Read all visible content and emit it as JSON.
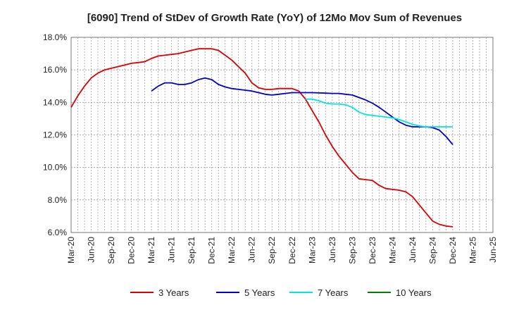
{
  "chart_data": {
    "type": "line",
    "title": "[6090]  Trend of StDev of Growth Rate (YoY) of 12Mo Mov Sum of Revenues",
    "xlabel": "",
    "ylabel": "",
    "ylim": [
      6.0,
      18.0
    ],
    "y_ticks": [
      "6.0%",
      "8.0%",
      "10.0%",
      "12.0%",
      "14.0%",
      "16.0%",
      "18.0%"
    ],
    "y_tick_values": [
      6,
      8,
      10,
      12,
      14,
      16,
      18
    ],
    "x_ticks": [
      "Mar-20",
      "Jun-20",
      "Sep-20",
      "Dec-20",
      "Mar-21",
      "Jun-21",
      "Sep-21",
      "Dec-21",
      "Mar-22",
      "Jun-22",
      "Sep-22",
      "Dec-22",
      "Mar-23",
      "Jun-23",
      "Sep-23",
      "Dec-23",
      "Mar-24",
      "Jun-24",
      "Sep-24",
      "Dec-24",
      "Mar-25",
      "Jun-25"
    ],
    "grid": true,
    "legend_position": "bottom",
    "series": [
      {
        "name": "3 Years",
        "color": "#dd0000",
        "start_index": 0,
        "values": [
          13.7,
          14.4,
          15.0,
          15.5,
          15.8,
          16.0,
          16.1,
          16.2,
          16.3,
          16.4,
          16.45,
          16.5,
          16.7,
          16.85,
          16.9,
          16.95,
          17.0,
          17.1,
          17.2,
          17.3,
          17.3,
          17.3,
          17.2,
          16.9,
          16.6,
          16.2,
          15.8,
          15.2,
          14.9,
          14.8,
          14.8,
          14.85,
          14.85,
          14.85,
          14.7,
          14.2,
          13.5,
          12.8,
          12.0,
          11.3,
          10.7,
          10.2,
          9.7,
          9.3,
          9.25,
          9.2,
          8.9,
          8.7,
          8.65,
          8.6,
          8.5,
          8.2,
          7.7,
          7.2,
          6.7,
          6.5,
          6.4,
          6.35
        ]
      },
      {
        "name": "5 Years",
        "color": "#0000cc",
        "start_index": 12,
        "values": [
          14.7,
          15.0,
          15.2,
          15.2,
          15.1,
          15.1,
          15.2,
          15.4,
          15.5,
          15.4,
          15.1,
          14.95,
          14.85,
          14.8,
          14.75,
          14.7,
          14.6,
          14.5,
          14.45,
          14.5,
          14.55,
          14.6,
          14.6,
          14.6,
          14.6,
          14.58,
          14.57,
          14.55,
          14.55,
          14.5,
          14.45,
          14.3,
          14.15,
          13.95,
          13.7,
          13.4,
          13.1,
          12.8,
          12.6,
          12.5,
          12.5,
          12.5,
          12.45,
          12.3,
          11.9,
          11.4
        ]
      },
      {
        "name": "7 Years",
        "color": "#00e5e5",
        "start_index": 35,
        "values": [
          14.2,
          14.2,
          14.1,
          13.95,
          13.9,
          13.9,
          13.85,
          13.7,
          13.4,
          13.25,
          13.2,
          13.15,
          13.1,
          13.05,
          12.95,
          12.8,
          12.65,
          12.55,
          12.5,
          12.5,
          12.5,
          12.5,
          12.5
        ]
      },
      {
        "name": "10 Years",
        "color": "#008000",
        "start_index": 0,
        "values": []
      }
    ]
  }
}
